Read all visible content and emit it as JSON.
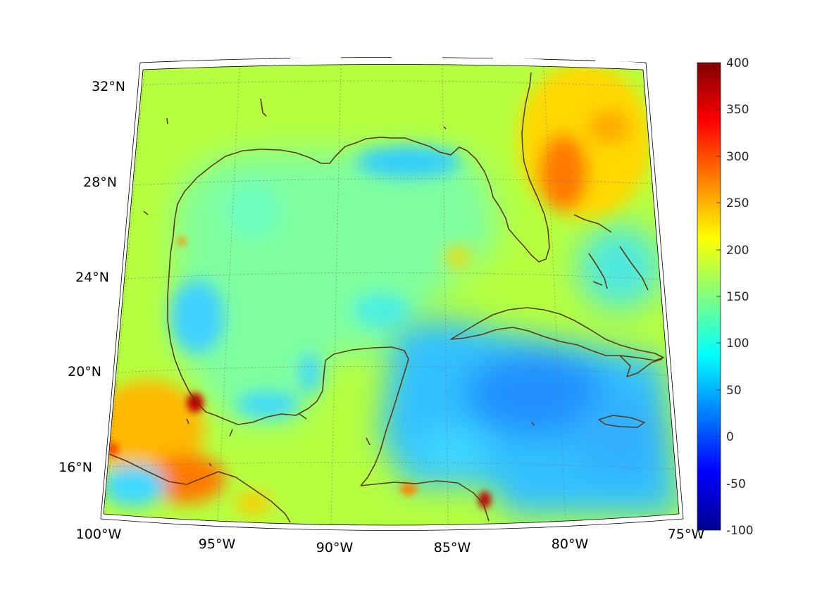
{
  "map": {
    "projection": "conic",
    "lon_range": [
      -100,
      -75
    ],
    "lat_range": [
      14,
      33
    ],
    "grid": true,
    "lon_ticks": [
      {
        "value": -100,
        "label": "100°W"
      },
      {
        "value": -95,
        "label": "95°W"
      },
      {
        "value": -90,
        "label": "90°W"
      },
      {
        "value": -85,
        "label": "85°W"
      },
      {
        "value": -80,
        "label": "80°W"
      },
      {
        "value": -75,
        "label": "75°W"
      }
    ],
    "lat_ticks": [
      {
        "value": 16,
        "label": "16°N"
      },
      {
        "value": 20,
        "label": "20°N"
      },
      {
        "value": 24,
        "label": "24°N"
      },
      {
        "value": 28,
        "label": "28°N"
      },
      {
        "value": 32,
        "label": "32°N"
      }
    ],
    "coastline_color": "#5a3c12"
  },
  "colorbar": {
    "colormap": "jet",
    "range": [
      -100,
      400
    ],
    "ticks": [
      {
        "value": 400,
        "label": "400"
      },
      {
        "value": 350,
        "label": "350"
      },
      {
        "value": 300,
        "label": "300"
      },
      {
        "value": 250,
        "label": "250"
      },
      {
        "value": 200,
        "label": "200"
      },
      {
        "value": 150,
        "label": "150"
      },
      {
        "value": 100,
        "label": "100"
      },
      {
        "value": 50,
        "label": "50"
      },
      {
        "value": 0,
        "label": "0"
      },
      {
        "value": -50,
        "label": "-50"
      },
      {
        "value": -100,
        "label": "-100"
      }
    ]
  }
}
